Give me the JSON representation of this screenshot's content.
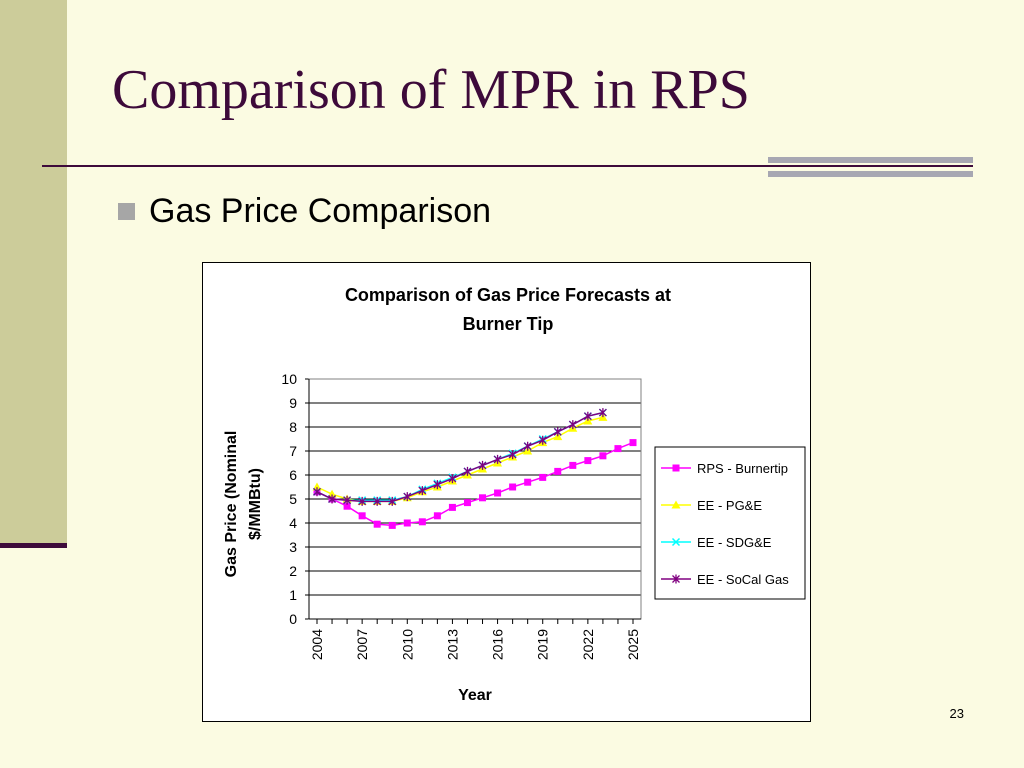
{
  "slide": {
    "title": "Comparison of MPR in RPS",
    "bullet": "Gas Price Comparison",
    "page_number": "23",
    "colors": {
      "background": "#fbfbe2",
      "sidebar": "#cccc9a",
      "title": "#3d0a3a",
      "accent_rule": "#a7a7b2"
    }
  },
  "chart_data": {
    "type": "line",
    "title_lines": [
      "Comparison of Gas Price Forecasts at",
      "Burner Tip"
    ],
    "xlabel": "Year",
    "ylabel_lines": [
      "Gas Price (Nominal",
      "$/MMBtu)"
    ],
    "ylim": [
      0,
      10
    ],
    "y_ticks": [
      "0",
      "1",
      "2",
      "3",
      "4",
      "5",
      "6",
      "7",
      "8",
      "9",
      "10"
    ],
    "x_tick_labels": [
      "2004",
      "2007",
      "2010",
      "2013",
      "2016",
      "2019",
      "2022",
      "2025"
    ],
    "x": [
      2004,
      2005,
      2006,
      2007,
      2008,
      2009,
      2010,
      2011,
      2012,
      2013,
      2014,
      2015,
      2016,
      2017,
      2018,
      2019,
      2020,
      2021,
      2022,
      2023,
      2024,
      2025
    ],
    "grid": "horizontal",
    "legend_position": "right",
    "series": [
      {
        "name": "RPS - Burnertip",
        "color": "#ff00ff",
        "marker": "square",
        "values": [
          5.3,
          5.0,
          4.7,
          4.3,
          3.95,
          3.9,
          4.0,
          4.05,
          4.3,
          4.65,
          4.85,
          5.05,
          5.25,
          5.5,
          5.7,
          5.9,
          6.15,
          6.4,
          6.6,
          6.8,
          7.1,
          7.35
        ]
      },
      {
        "name": "EE - PG&E",
        "color": "#ffff00",
        "marker": "triangle",
        "values": [
          5.5,
          5.2,
          5.0,
          4.9,
          4.9,
          4.9,
          5.05,
          5.3,
          5.5,
          5.75,
          6.0,
          6.25,
          6.5,
          6.75,
          7.0,
          7.35,
          7.6,
          7.95,
          8.25,
          8.4,
          null,
          null
        ]
      },
      {
        "name": "EE - SDG&E",
        "color": "#00ffff",
        "marker": "x",
        "values": [
          5.3,
          5.0,
          4.95,
          4.95,
          4.95,
          4.95,
          5.1,
          5.4,
          5.65,
          5.9,
          6.15,
          6.4,
          6.65,
          6.9,
          7.2,
          7.5,
          7.8,
          8.1,
          8.45,
          8.6,
          null,
          null
        ]
      },
      {
        "name": "EE - SoCal Gas",
        "color": "#800080",
        "marker": "star",
        "values": [
          5.3,
          5.0,
          4.95,
          4.9,
          4.9,
          4.9,
          5.1,
          5.35,
          5.6,
          5.85,
          6.15,
          6.4,
          6.65,
          6.85,
          7.2,
          7.45,
          7.8,
          8.1,
          8.45,
          8.6,
          null,
          null
        ]
      }
    ]
  }
}
